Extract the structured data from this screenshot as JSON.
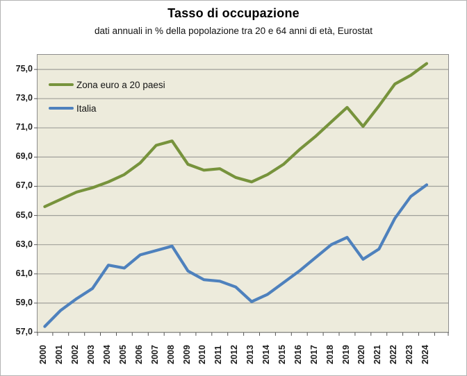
{
  "title": "Tasso di occupazione",
  "subtitle": "dati annuali in % della popolazione tra 20 e 64 anni di età, Eurostat",
  "colors": {
    "plot_background": "#edebdc",
    "gridline": "#a0a09a",
    "plot_border": "#8c8c8c",
    "euro_area_line": "#77933c",
    "italy_line": "#4e81bd"
  },
  "chart_data": {
    "type": "line",
    "title": "Tasso di occupazione",
    "subtitle": "dati annuali in % della popolazione tra 20 e 64 anni di età, Eurostat",
    "x": [
      2000,
      2001,
      2002,
      2003,
      2004,
      2005,
      2006,
      2007,
      2008,
      2009,
      2010,
      2011,
      2012,
      2013,
      2014,
      2015,
      2016,
      2017,
      2018,
      2019,
      2020,
      2021,
      2022,
      2023,
      2024
    ],
    "series": [
      {
        "name": "Zona euro a 20 paesi",
        "color": "#77933c",
        "values": [
          65.6,
          66.1,
          66.6,
          66.9,
          67.3,
          67.8,
          68.6,
          69.8,
          70.1,
          68.5,
          68.1,
          68.2,
          67.6,
          67.3,
          67.8,
          68.5,
          69.5,
          70.4,
          71.4,
          72.4,
          71.1,
          72.5,
          74.0,
          74.6,
          75.4
        ]
      },
      {
        "name": "Italia",
        "color": "#4e81bd",
        "values": [
          57.4,
          58.5,
          59.3,
          60.0,
          61.6,
          61.4,
          62.3,
          62.6,
          62.9,
          61.2,
          60.6,
          60.5,
          60.1,
          59.1,
          59.6,
          60.4,
          61.2,
          62.1,
          63.0,
          63.5,
          62.0,
          62.7,
          64.8,
          66.3,
          67.1
        ]
      }
    ],
    "ylim": [
      57,
      76
    ],
    "yticks": [
      57,
      59,
      61,
      63,
      65,
      67,
      69,
      71,
      73,
      75
    ],
    "ytick_labels": [
      "57,0",
      "59,0",
      "61,0",
      "63,0",
      "65,0",
      "67,0",
      "69,0",
      "71,0",
      "73,0",
      "75,0"
    ],
    "xlabel": "",
    "ylabel": "",
    "grid": true,
    "legend_position": "inside-top-left",
    "markers": false
  }
}
